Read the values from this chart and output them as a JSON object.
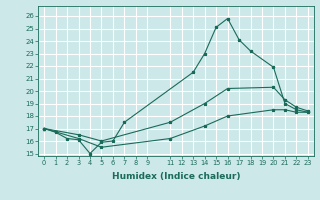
{
  "xlabel": "Humidex (Indice chaleur)",
  "bg_color": "#cce8e8",
  "grid_color": "#ffffff",
  "line_color": "#1a6b5a",
  "xlim": [
    -0.5,
    23.5
  ],
  "ylim": [
    14.8,
    26.8
  ],
  "xticks": [
    0,
    1,
    2,
    3,
    4,
    5,
    6,
    7,
    8,
    9,
    11,
    12,
    13,
    14,
    15,
    16,
    17,
    18,
    19,
    20,
    21,
    22,
    23
  ],
  "yticks": [
    15,
    16,
    17,
    18,
    19,
    20,
    21,
    22,
    23,
    24,
    25,
    26
  ],
  "line1_x": [
    0,
    1,
    2,
    3,
    4,
    5,
    6,
    7,
    13,
    14,
    15,
    16,
    17,
    18,
    20,
    21,
    22,
    23
  ],
  "line1_y": [
    17.0,
    16.7,
    16.2,
    16.1,
    15.0,
    15.9,
    16.0,
    17.5,
    21.5,
    23.0,
    25.1,
    25.8,
    24.1,
    23.2,
    21.9,
    19.0,
    18.5,
    18.3
  ],
  "line2_x": [
    0,
    3,
    5,
    11,
    14,
    16,
    20,
    21,
    22,
    23
  ],
  "line2_y": [
    17.0,
    16.5,
    16.0,
    17.5,
    19.0,
    20.2,
    20.3,
    19.3,
    18.7,
    18.4
  ],
  "line3_x": [
    0,
    3,
    5,
    11,
    14,
    16,
    20,
    21,
    22,
    23
  ],
  "line3_y": [
    17.0,
    16.2,
    15.5,
    16.2,
    17.2,
    18.0,
    18.5,
    18.5,
    18.3,
    18.3
  ]
}
